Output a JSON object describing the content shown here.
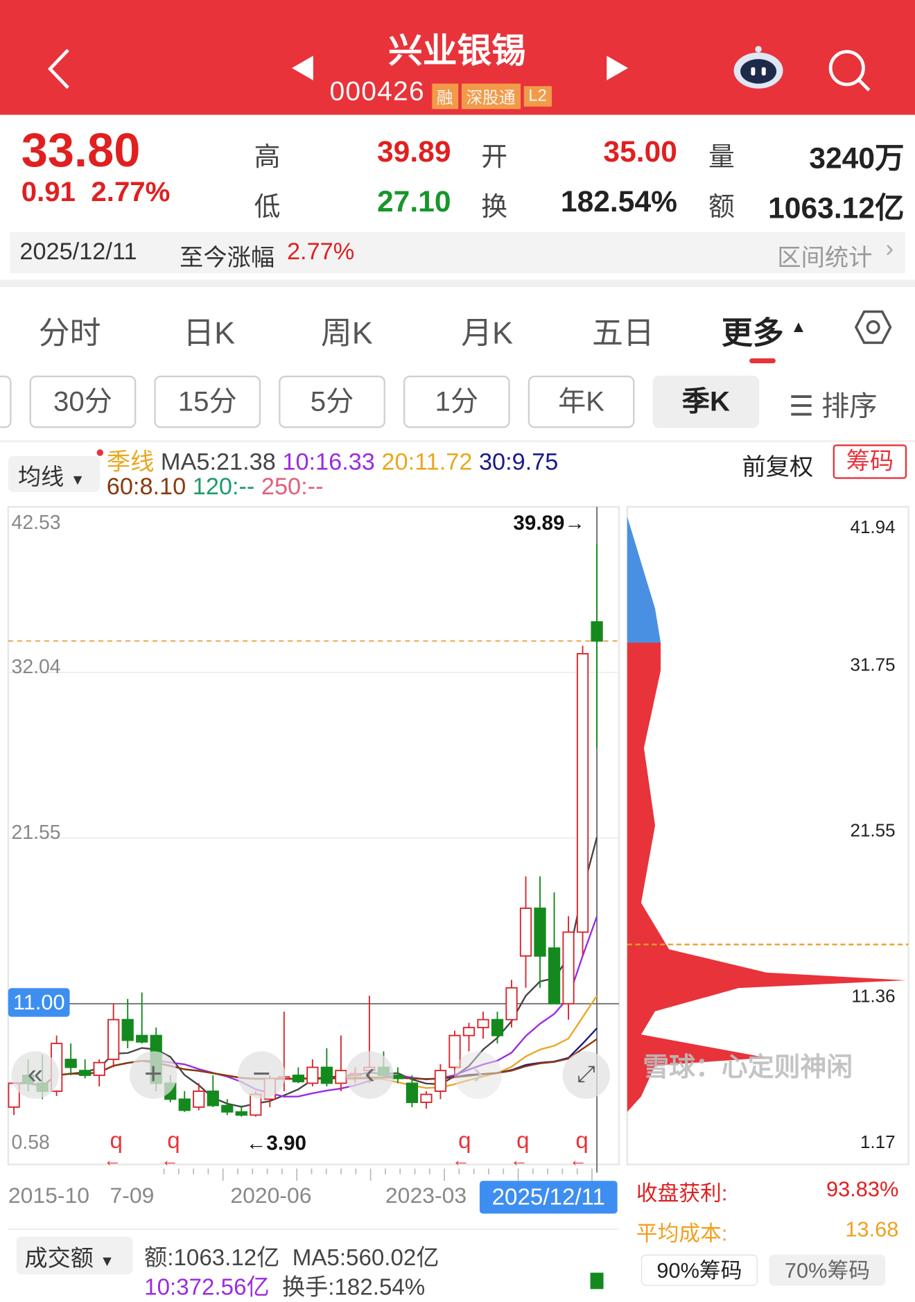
{
  "header": {
    "title": "兴业银锡",
    "code": "000426",
    "badges": [
      "融",
      "深股通",
      "L2"
    ],
    "colors": {
      "bg": "#E8333A",
      "badge": "#F2A14A"
    }
  },
  "quote": {
    "price": "33.80",
    "change": "0.91",
    "change_pct": "2.77%",
    "high_label": "高",
    "high": "39.89",
    "open_label": "开",
    "open": "35.00",
    "vol_label": "量",
    "vol": "3240万",
    "low_label": "低",
    "low": "27.10",
    "turn_label": "换",
    "turn": "182.54%",
    "amt_label": "额",
    "amt": "1063.12亿",
    "date": "2025/12/11",
    "since_label": "至今涨幅",
    "since_pct": "2.77%",
    "stats_label": "区间统计"
  },
  "tabs": [
    "分时",
    "日K",
    "周K",
    "月K",
    "五日",
    "更多"
  ],
  "periods": [
    "30分",
    "15分",
    "5分",
    "1分",
    "年K",
    "季K"
  ],
  "sort_label": "排序",
  "ma": {
    "selector": "均线",
    "period": "季线",
    "ma5": "MA5:21.38",
    "ma10": "10:16.33",
    "ma20": "20:11.72",
    "ma30": "30:9.75",
    "ma60": "60:8.10",
    "ma120": "120:--",
    "ma250": "250:--",
    "adjust": "前复权",
    "chips_btn": "筹码"
  },
  "chart_data": {
    "type": "candlestick",
    "yticks_left": [
      "42.53",
      "32.04",
      "21.55",
      "11.00",
      "0.58"
    ],
    "yticks_right": [
      "41.94",
      "31.75",
      "21.55",
      "11.36",
      "1.17"
    ],
    "xticks": [
      "2015-10",
      "7-09",
      "2020-06",
      "2023-03"
    ],
    "cursor_date": "2025/12/11",
    "high_marker": "39.89→",
    "low_marker": "←3.90",
    "current_price": 33.8,
    "cursor_price": 11.0,
    "candles": [
      [
        4.5,
        6.0,
        4.0,
        6.0
      ],
      [
        6.5,
        7.5,
        5.5,
        6.0
      ],
      [
        6.0,
        7.8,
        5.0,
        5.5
      ],
      [
        5.5,
        9.0,
        5.2,
        8.5
      ],
      [
        7.5,
        8.5,
        6.5,
        7.0
      ],
      [
        6.8,
        7.5,
        6.3,
        6.5
      ],
      [
        6.5,
        7.5,
        5.8,
        7.3
      ],
      [
        7.5,
        11.0,
        7.0,
        10.0
      ],
      [
        10.0,
        11.3,
        8.2,
        8.7
      ],
      [
        9.0,
        11.7,
        8.5,
        8.6
      ],
      [
        9.0,
        9.5,
        5.5,
        6.0
      ],
      [
        6.0,
        6.5,
        4.8,
        5.0
      ],
      [
        5.0,
        5.5,
        4.2,
        4.3
      ],
      [
        4.5,
        6.0,
        4.3,
        5.5
      ],
      [
        5.5,
        6.5,
        4.5,
        4.6
      ],
      [
        4.6,
        5.0,
        4.0,
        4.2
      ],
      [
        4.2,
        4.6,
        3.9,
        4.0
      ],
      [
        4.0,
        5.5,
        3.9,
        5.3
      ],
      [
        5.0,
        6.5,
        4.5,
        6.3
      ],
      [
        6.3,
        10.5,
        5.5,
        6.4
      ],
      [
        6.5,
        7.0,
        6.0,
        6.1
      ],
      [
        6.0,
        7.5,
        5.8,
        7.0
      ],
      [
        7.0,
        8.2,
        5.8,
        6.0
      ],
      [
        6.0,
        9.0,
        5.5,
        6.8
      ],
      [
        6.5,
        7.0,
        6.0,
        6.6
      ],
      [
        6.8,
        11.5,
        6.0,
        7.0
      ],
      [
        7.0,
        8.0,
        6.5,
        6.5
      ],
      [
        6.5,
        7.0,
        6.0,
        6.3
      ],
      [
        6.0,
        6.5,
        4.5,
        4.8
      ],
      [
        4.8,
        5.5,
        4.4,
        5.3
      ],
      [
        5.5,
        7.2,
        5.0,
        6.8
      ],
      [
        7.0,
        9.3,
        6.5,
        9.0
      ],
      [
        9.0,
        9.8,
        8.0,
        9.5
      ],
      [
        9.5,
        10.5,
        8.8,
        10.0
      ],
      [
        10.0,
        10.5,
        8.5,
        9.0
      ],
      [
        10.0,
        12.5,
        9.5,
        12.0
      ],
      [
        14.0,
        19.0,
        12.0,
        17.0
      ],
      [
        17.0,
        19.0,
        12.0,
        14.0
      ],
      [
        14.5,
        18.0,
        11.0,
        11.0
      ],
      [
        11.0,
        16.5,
        10.0,
        15.5
      ],
      [
        15.5,
        33.5,
        14.0,
        33.0
      ],
      [
        35.0,
        39.89,
        27.1,
        33.8
      ]
    ],
    "chip_profile": [
      [
        41.94,
        0
      ],
      [
        36,
        0.1
      ],
      [
        33.8,
        0.12
      ],
      [
        32,
        0.12
      ],
      [
        27,
        0.06
      ],
      [
        22,
        0.1
      ],
      [
        17,
        0.05
      ],
      [
        14,
        0.15
      ],
      [
        12.5,
        0.5
      ],
      [
        12,
        1.0
      ],
      [
        11.5,
        0.4
      ],
      [
        10,
        0.1
      ],
      [
        8.5,
        0.05
      ],
      [
        7,
        0.5
      ],
      [
        6.5,
        0.1
      ],
      [
        4.5,
        0.05
      ],
      [
        3.5,
        0.0
      ]
    ],
    "colors": {
      "up": "#D8262C",
      "down": "#148A1E",
      "ma5": "#444",
      "ma10": "#9A2BE0",
      "ma20": "#E8A820",
      "ma30": "#1A1A8A",
      "ma60": "#8B3A0E",
      "chip": "#E8333A",
      "chip_above": "#4A90E2"
    }
  },
  "chips": {
    "profit_label": "收盘获利:",
    "profit": "93.83%",
    "cost_label": "平均成本:",
    "cost": "13.68",
    "tab90": "90%筹码",
    "tab70": "70%筹码"
  },
  "volume": {
    "selector": "成交额",
    "amt": "额:1063.12亿",
    "ma5": "MA5:560.02亿",
    "ma10": "10:372.56亿",
    "turn": "换手:182.54%"
  },
  "watermark": "雪球：心定则神闲"
}
